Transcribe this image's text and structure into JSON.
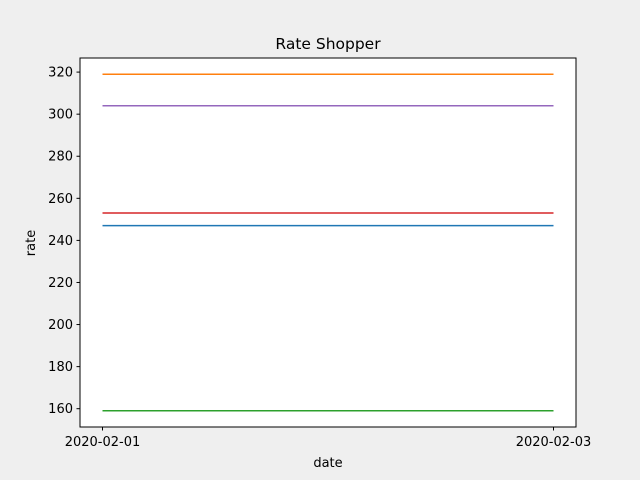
{
  "chart_data": {
    "type": "line",
    "title": "Rate Shopper",
    "xlabel": "date",
    "ylabel": "rate",
    "x": [
      "2020-02-01",
      "2020-02-03"
    ],
    "x_ticks": [
      "2020-02-01",
      "2020-02-03"
    ],
    "y_ticks": [
      160,
      180,
      200,
      220,
      240,
      260,
      280,
      300,
      320
    ],
    "ylim": [
      151.3,
      326.7
    ],
    "grid": false,
    "series": [
      {
        "values": [
          247,
          247
        ],
        "color": "#1f77b4"
      },
      {
        "values": [
          319,
          319
        ],
        "color": "#ff7f0e"
      },
      {
        "values": [
          159,
          159
        ],
        "color": "#2ca02c"
      },
      {
        "values": [
          253,
          253
        ],
        "color": "#d62728"
      },
      {
        "values": [
          304,
          304
        ],
        "color": "#9467bd"
      }
    ]
  }
}
